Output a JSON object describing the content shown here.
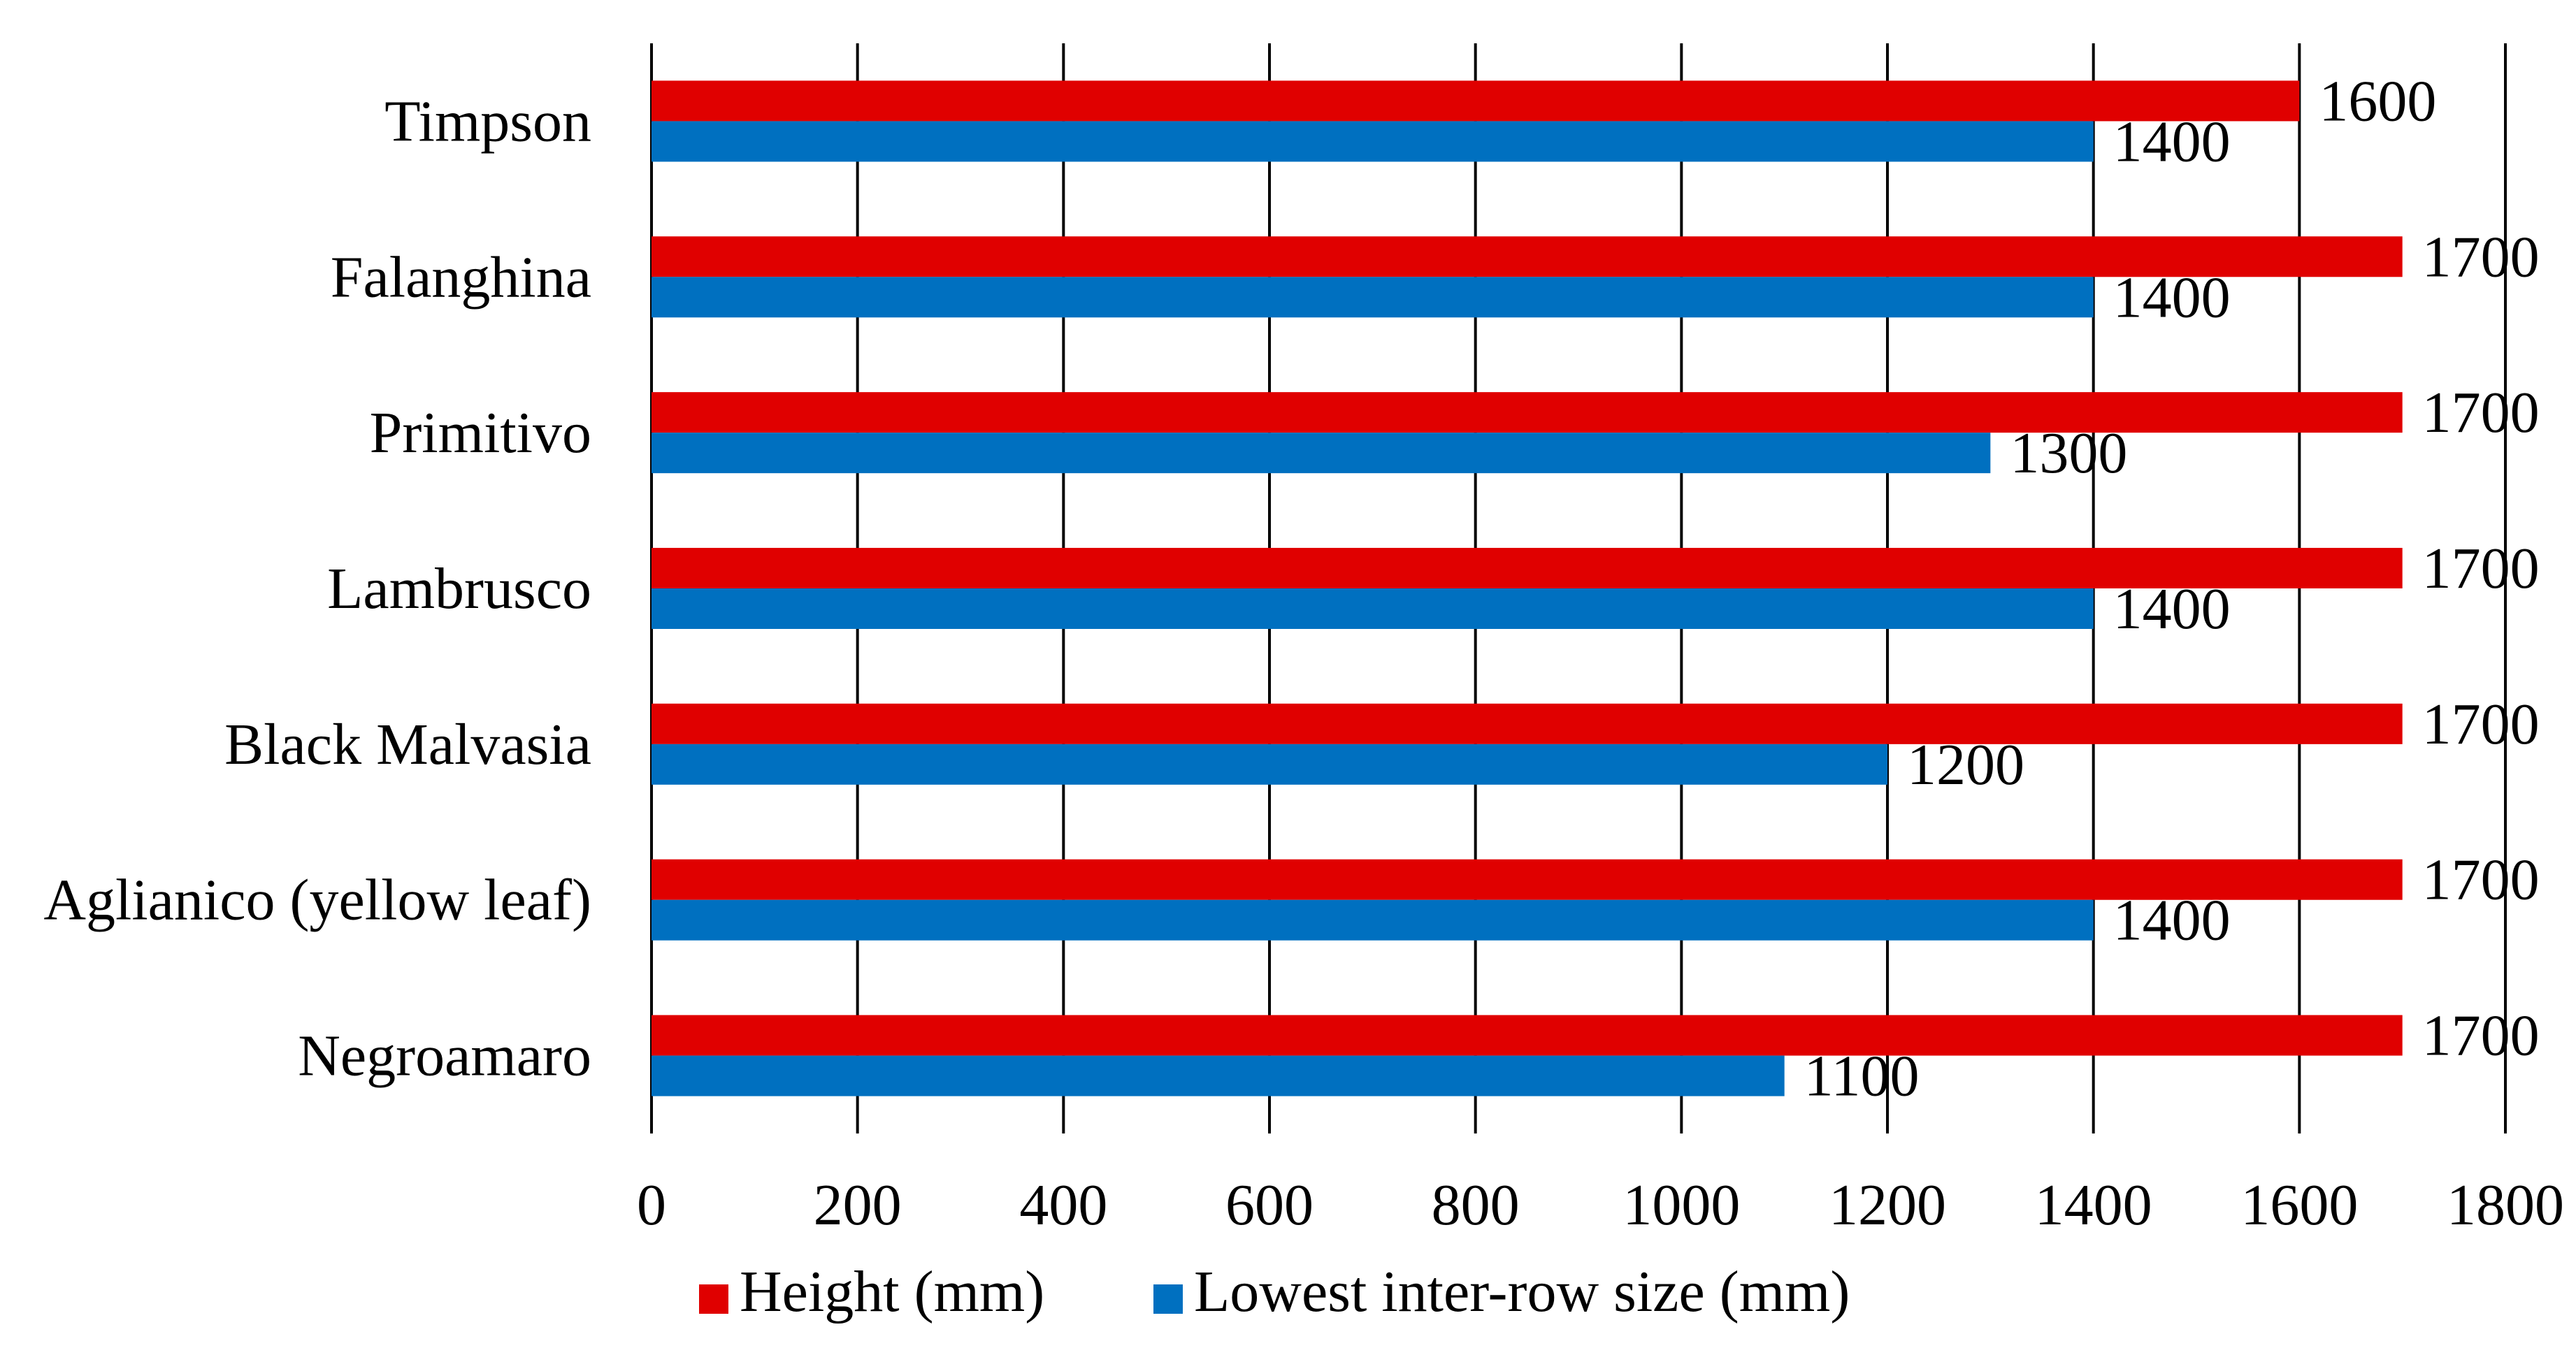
{
  "chart_data": {
    "type": "bar",
    "orientation": "horizontal",
    "title": "",
    "xlabel": "",
    "ylabel": "",
    "categories": [
      "Timpson",
      "Falanghina",
      "Primitivo",
      "Lambrusco",
      "Black Malvasia",
      "Aglianico (yellow leaf)",
      "Negroamaro"
    ],
    "series": [
      {
        "name": "Height (mm)",
        "color": "#E00000",
        "values": [
          1600,
          1700,
          1700,
          1700,
          1700,
          1700,
          1700
        ]
      },
      {
        "name": "Lowest inter-row size (mm)",
        "color": "#0070C0",
        "values": [
          1400,
          1400,
          1300,
          1400,
          1200,
          1400,
          1100
        ]
      }
    ],
    "xlim": [
      0,
      1800
    ],
    "xticks": [
      0,
      200,
      400,
      600,
      800,
      1000,
      1200,
      1400,
      1600,
      1800
    ],
    "grid": "vertical",
    "data_labels": true,
    "legend_position": "bottom"
  }
}
